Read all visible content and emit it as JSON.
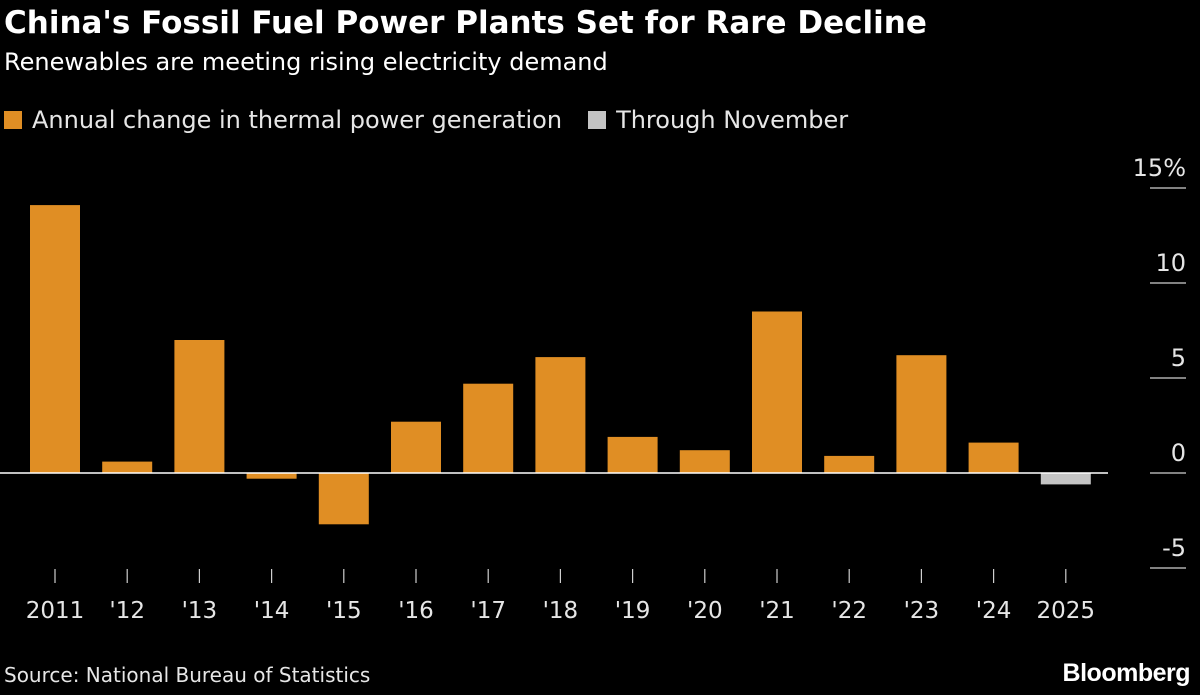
{
  "chart_data": {
    "type": "bar",
    "title": "China's Fossil Fuel Power Plants Set for Rare Decline",
    "subtitle": "Renewables are meeting rising electricity demand",
    "categories": [
      "2011",
      "'12",
      "'13",
      "'14",
      "'15",
      "'16",
      "'17",
      "'18",
      "'19",
      "'20",
      "'21",
      "'22",
      "'23",
      "'24",
      "2025"
    ],
    "series": [
      {
        "name": "Annual change in thermal power generation",
        "color": "#e08e24",
        "values": [
          14.1,
          0.6,
          7.0,
          -0.3,
          -2.7,
          2.7,
          4.7,
          6.1,
          1.9,
          1.2,
          8.5,
          0.9,
          6.2,
          1.6,
          null
        ]
      },
      {
        "name": "Through November",
        "color": "#c4c4c4",
        "values": [
          null,
          null,
          null,
          null,
          null,
          null,
          null,
          null,
          null,
          null,
          null,
          null,
          null,
          null,
          -0.6
        ]
      }
    ],
    "yticks": [
      {
        "value": 15,
        "label": "15%"
      },
      {
        "value": 10,
        "label": "10"
      },
      {
        "value": 5,
        "label": "5"
      },
      {
        "value": 0,
        "label": "0"
      },
      {
        "value": -5,
        "label": "-5"
      }
    ],
    "ylim": [
      -5,
      15
    ],
    "grid": false,
    "legend": "top-left",
    "zero_line_color": "#ffffff"
  },
  "footer": {
    "source": "Source: National Bureau of Statistics",
    "brand": "Bloomberg"
  }
}
